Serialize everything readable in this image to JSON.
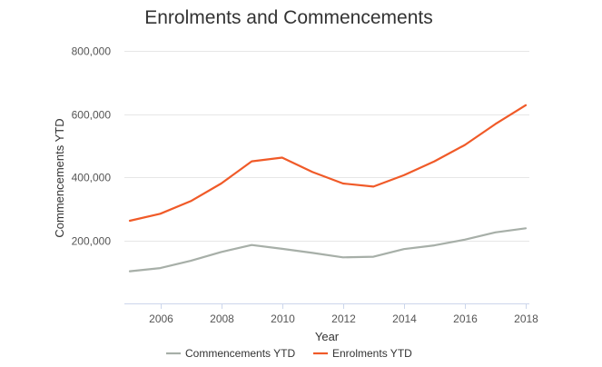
{
  "chart_data": {
    "type": "line",
    "title": "Enrolments and Commencements",
    "xlabel": "Year",
    "ylabel": "Commencements YTD",
    "xlim": [
      2005,
      2018
    ],
    "ylim": [
      0,
      800000
    ],
    "x_ticks": [
      2006,
      2008,
      2010,
      2012,
      2014,
      2016,
      2018
    ],
    "x_tick_labels": [
      "2006",
      "2008",
      "2010",
      "2012",
      "2014",
      "2016",
      "2018"
    ],
    "y_ticks": [
      200000,
      400000,
      600000,
      800000
    ],
    "y_tick_labels": [
      "200,000",
      "400,000",
      "600,000",
      "800,000"
    ],
    "grid": true,
    "legend_position": "bottom",
    "x": [
      2005,
      2006,
      2007,
      2008,
      2009,
      2010,
      2011,
      2012,
      2013,
      2014,
      2015,
      2016,
      2017,
      2018
    ],
    "series": [
      {
        "name": "Commencements YTD",
        "color": "#a7afa8",
        "values": [
          102000,
          112000,
          135000,
          163000,
          185000,
          173000,
          160000,
          146000,
          148000,
          172000,
          184000,
          202000,
          225000,
          238000
        ]
      },
      {
        "name": "Enrolments YTD",
        "color": "#f05a28",
        "values": [
          262000,
          284000,
          324000,
          380000,
          450000,
          462000,
          416000,
          380000,
          370000,
          406000,
          450000,
          502000,
          568000,
          628000
        ]
      }
    ]
  }
}
